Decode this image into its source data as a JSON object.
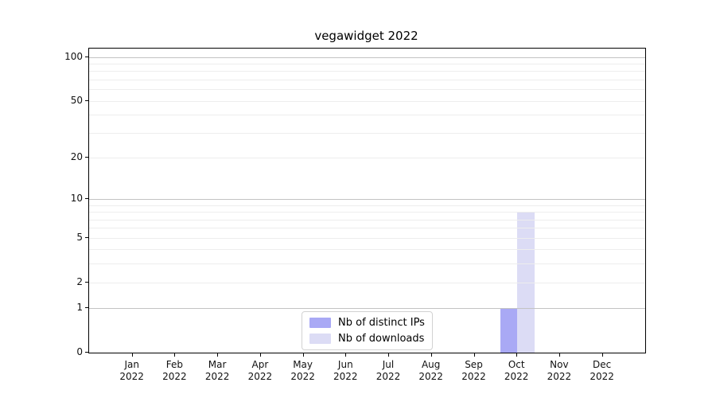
{
  "chart_data": {
    "type": "bar",
    "title": "vegawidget 2022",
    "categories": [
      "Jan",
      "Feb",
      "Mar",
      "Apr",
      "May",
      "Jun",
      "Jul",
      "Aug",
      "Sep",
      "Oct",
      "Nov",
      "Dec"
    ],
    "category_year": "2022",
    "series": [
      {
        "name": "Nb of distinct IPs",
        "color": "#a9a9f5",
        "values": [
          0,
          0,
          0,
          0,
          0,
          0,
          0,
          0,
          0,
          1,
          0,
          0
        ]
      },
      {
        "name": "Nb of downloads",
        "color": "#dcdcf5",
        "values": [
          0,
          0,
          0,
          0,
          0,
          0,
          0,
          0,
          0,
          8,
          0,
          0
        ]
      }
    ],
    "xlabel": "",
    "ylabel": "",
    "ylim": [
      0,
      100
    ],
    "yscale": "log1p",
    "grid": true,
    "legend_position": "bottom-center",
    "y_axis": {
      "ticks": [
        {
          "label": "0",
          "value": 0
        },
        {
          "label": "1",
          "value": 1
        },
        {
          "label": "2",
          "value": 2
        },
        {
          "label": "5",
          "value": 5
        },
        {
          "label": "10",
          "value": 10
        },
        {
          "label": "20",
          "value": 20
        },
        {
          "label": "50",
          "value": 50
        },
        {
          "label": "100",
          "value": 100
        }
      ],
      "major_gridline_values": [
        1,
        10,
        100
      ],
      "minor_gridline_values": [
        2,
        3,
        4,
        5,
        6,
        7,
        8,
        9,
        20,
        30,
        40,
        50,
        60,
        70,
        80,
        90
      ]
    }
  }
}
